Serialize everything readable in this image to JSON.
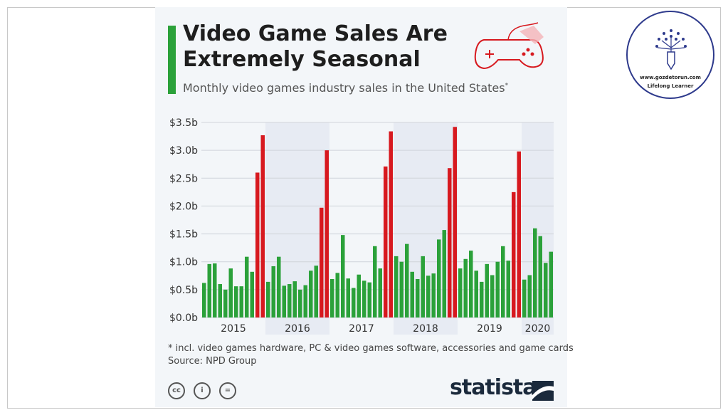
{
  "header": {
    "title": "Video Game Sales Are Extremely Seasonal",
    "subtitle": "Monthly video games industry sales in the United States",
    "subtitle_mark": "*"
  },
  "footer": {
    "note": "* incl. video games hardware, PC & video games software, accessories and game cards",
    "source": "Source: NPD Group",
    "brand": "statista",
    "license_icons": [
      "cc-icon",
      "attribution-icon",
      "no-derivatives-icon"
    ]
  },
  "logo": {
    "url": "www.gozdetorun.com",
    "tagline": "Lifelong Learner",
    "icon": "tree-pencil-icon"
  },
  "colors": {
    "regular": "#2ba13a",
    "holiday": "#d7191f",
    "band": "#e7ebf3",
    "accent": "#2ba13a"
  },
  "chart_data": {
    "type": "bar",
    "title": "Video Game Sales Are Extremely Seasonal",
    "ylabel": "",
    "xlabel": "",
    "ylim": [
      0,
      3.5
    ],
    "yticks": [
      "$0.0b",
      "$0.5b",
      "$1.0b",
      "$1.5b",
      "$2.0b",
      "$2.5b",
      "$3.0b",
      "$3.5b"
    ],
    "grid": true,
    "years": [
      "2015",
      "2016",
      "2017",
      "2018",
      "2019",
      "2020"
    ],
    "highlight": "November and December bars in red",
    "values_billion_usd": {
      "2015": [
        0.62,
        0.96,
        0.97,
        0.6,
        0.5,
        0.88,
        0.56,
        0.56,
        1.09,
        0.82,
        2.6,
        3.27
      ],
      "2016": [
        0.64,
        0.92,
        1.09,
        0.57,
        0.6,
        0.65,
        0.5,
        0.58,
        0.84,
        0.93,
        1.97,
        3.0
      ],
      "2017": [
        0.69,
        0.8,
        1.48,
        0.7,
        0.53,
        0.77,
        0.66,
        0.63,
        1.28,
        0.88,
        2.71,
        3.34
      ],
      "2018": [
        1.1,
        1.0,
        1.32,
        0.82,
        0.69,
        1.1,
        0.75,
        0.79,
        1.4,
        1.57,
        2.68,
        3.42
      ],
      "2019": [
        0.88,
        1.05,
        1.2,
        0.84,
        0.64,
        0.96,
        0.76,
        1.0,
        1.28,
        1.02,
        2.25,
        2.98
      ],
      "2020": [
        0.68,
        0.76,
        1.6,
        1.46,
        0.98,
        1.18
      ]
    }
  }
}
